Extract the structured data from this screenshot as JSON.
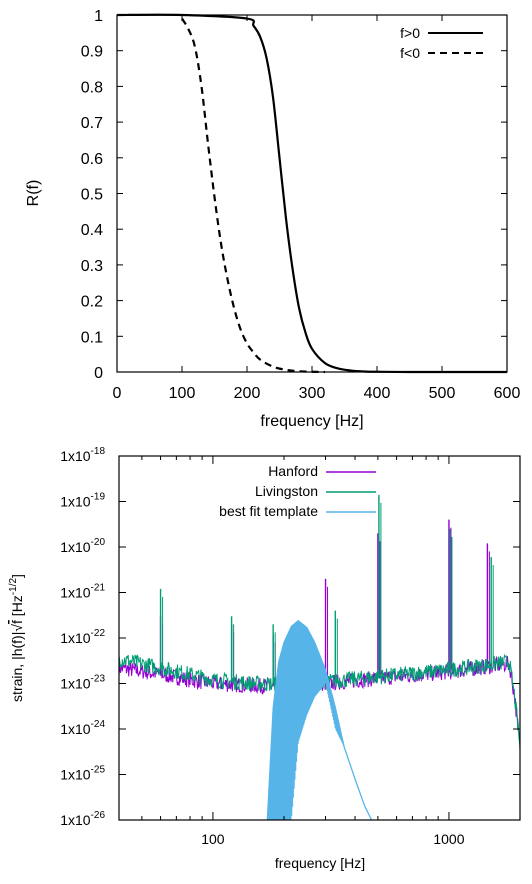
{
  "chart_data": [
    {
      "type": "line",
      "xlabel": "frequency [Hz]",
      "ylabel": "R(f)",
      "xlim": [
        0,
        600
      ],
      "ylim": [
        0,
        1
      ],
      "x_ticks": [
        "0",
        "100",
        "200",
        "300",
        "400",
        "500",
        "600"
      ],
      "y_ticks": [
        "0",
        "0.1",
        "0.2",
        "0.3",
        "0.4",
        "0.5",
        "0.6",
        "0.7",
        "0.8",
        "0.9",
        "1"
      ],
      "grid": false,
      "legend_position": "top-right",
      "series": [
        {
          "name": "f>0",
          "style": "solid",
          "color": "#000000",
          "x": [
            0,
            100,
            200,
            210,
            220,
            230,
            240,
            250,
            260,
            270,
            280,
            290,
            300,
            320,
            340,
            360,
            380,
            400,
            450,
            500,
            600
          ],
          "y": [
            1.0,
            1.0,
            0.99,
            0.97,
            0.94,
            0.88,
            0.77,
            0.6,
            0.43,
            0.29,
            0.18,
            0.11,
            0.065,
            0.025,
            0.01,
            0.004,
            0.0015,
            0.0006,
            0.0,
            0.0,
            0.0
          ]
        },
        {
          "name": "f<0",
          "style": "dashed",
          "color": "#000000",
          "x": [
            100,
            110,
            120,
            130,
            140,
            150,
            160,
            170,
            180,
            190,
            200,
            210,
            220,
            240,
            260,
            280,
            300,
            320
          ],
          "y": [
            0.99,
            0.96,
            0.91,
            0.8,
            0.64,
            0.49,
            0.36,
            0.26,
            0.18,
            0.12,
            0.08,
            0.055,
            0.035,
            0.015,
            0.006,
            0.002,
            0.0007,
            0.0
          ]
        }
      ]
    },
    {
      "type": "line",
      "xlabel": "frequency [Hz]",
      "ylabel": "strain, |h(f)|√f [Hz^-1/2]",
      "ylabel_parts": {
        "main": "strain, |h(f)|",
        "sqrt": "√",
        "f": "f",
        "unit": " [Hz",
        "sup": "-1/2",
        "close": "]"
      },
      "x_scale": "log",
      "y_scale": "log",
      "xlim": [
        40,
        2000
      ],
      "ylim": [
        1e-26,
        1e-18
      ],
      "x_ticks": [
        "100",
        "1000"
      ],
      "y_ticks": [
        {
          "base": "1x10",
          "exp": "-26"
        },
        {
          "base": "1x10",
          "exp": "-25"
        },
        {
          "base": "1x10",
          "exp": "-24"
        },
        {
          "base": "1x10",
          "exp": "-23"
        },
        {
          "base": "1x10",
          "exp": "-22"
        },
        {
          "base": "1x10",
          "exp": "-21"
        },
        {
          "base": "1x10",
          "exp": "-20"
        },
        {
          "base": "1x10",
          "exp": "-19"
        },
        {
          "base": "1x10",
          "exp": "-18"
        }
      ],
      "grid": false,
      "legend_position": "top-right",
      "series": [
        {
          "name": "Hanford",
          "color": "#9400d3",
          "x": [
            40,
            60,
            80,
            100,
            150,
            200,
            300,
            500,
            1000,
            1500,
            1800,
            1900,
            2000
          ],
          "y": [
            2.2e-23,
            1.6e-23,
            1.2e-23,
            1e-23,
            9e-24,
            8.5e-24,
            1e-23,
            1.3e-23,
            1.8e-23,
            2.4e-23,
            2.7e-23,
            5e-24,
            4e-25
          ],
          "spikes": [
            {
              "x": 60,
              "y": 3e-22
            },
            {
              "x": 120,
              "y": 2e-22
            },
            {
              "x": 180,
              "y": 1.2e-22
            },
            {
              "x": 300,
              "y": 2e-21
            },
            {
              "x": 500,
              "y": 2e-20
            },
            {
              "x": 1000,
              "y": 4e-20
            },
            {
              "x": 1455,
              "y": 1.2e-20
            }
          ]
        },
        {
          "name": "Livingston",
          "color": "#009e73",
          "x": [
            40,
            60,
            80,
            100,
            150,
            200,
            300,
            500,
            1000,
            1500,
            1800,
            1900,
            2000
          ],
          "y": [
            3.5e-23,
            2.2e-23,
            1.6e-23,
            1.2e-23,
            1e-23,
            9.5e-24,
            1.1e-23,
            1.4e-23,
            2e-23,
            2.6e-23,
            3e-23,
            5e-24,
            4e-25
          ],
          "spikes": [
            {
              "x": 60,
              "y": 1.2e-21
            },
            {
              "x": 120,
              "y": 3e-22
            },
            {
              "x": 180,
              "y": 2e-22
            },
            {
              "x": 330,
              "y": 4e-22
            },
            {
              "x": 505,
              "y": 1.4e-19
            },
            {
              "x": 1010,
              "y": 2.5e-20
            },
            {
              "x": 1510,
              "y": 6e-21
            }
          ]
        },
        {
          "name": "best fit template",
          "color": "#56b4e9",
          "x": [
            170,
            180,
            190,
            200,
            215,
            230,
            250,
            270,
            300,
            330,
            360,
            400,
            440,
            470
          ],
          "y": [
            1e-26,
            3e-24,
            3e-23,
            8e-23,
            1.8e-22,
            2.4e-22,
            1.7e-22,
            8e-23,
            2e-23,
            3e-24,
            4e-25,
            8e-26,
            2e-26,
            1e-26
          ],
          "oscillation_floor": [
            1e-26,
            1e-26,
            1e-26,
            1e-26,
            1e-26,
            5e-25,
            2e-24,
            5e-24,
            1e-23,
            1e-24,
            4e-25,
            8e-26,
            2e-26,
            1e-26
          ]
        }
      ]
    }
  ]
}
